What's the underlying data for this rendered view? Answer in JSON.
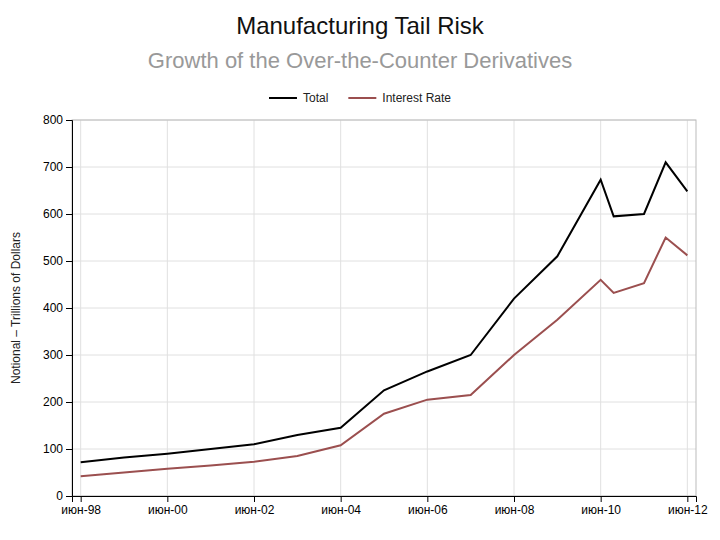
{
  "chart_data": {
    "type": "line",
    "title": "Manufacturing Tail Risk",
    "subtitle": "Growth of the Over-the-Counter Derivatives",
    "ylabel": "Notional – Trillions of Dollars",
    "x": [
      0,
      1,
      2,
      3,
      4,
      5,
      6,
      7,
      8,
      9,
      10,
      11,
      12,
      12.3,
      13,
      13.5,
      14
    ],
    "xlim": [
      -0.2,
      14.2
    ],
    "xticks": [
      {
        "value": 0,
        "label": "июн-98"
      },
      {
        "value": 2,
        "label": "июн-00"
      },
      {
        "value": 4,
        "label": "июн-02"
      },
      {
        "value": 6,
        "label": "июн-04"
      },
      {
        "value": 8,
        "label": "июн-06"
      },
      {
        "value": 10,
        "label": "июн-08"
      },
      {
        "value": 12,
        "label": "июн-10"
      },
      {
        "value": 14,
        "label": "июн-12"
      }
    ],
    "ylim": [
      0,
      800
    ],
    "yticks": [
      0,
      100,
      200,
      300,
      400,
      500,
      600,
      700,
      800
    ],
    "series": [
      {
        "name": "Total",
        "color": "#000000",
        "values": [
          72,
          82,
          90,
          100,
          110,
          130,
          145,
          225,
          265,
          300,
          420,
          510,
          673,
          595,
          600,
          710,
          648
        ]
      },
      {
        "name": "Interest Rate",
        "color": "#9B4F4F",
        "values": [
          42,
          50,
          58,
          65,
          73,
          85,
          108,
          175,
          205,
          215,
          300,
          375,
          460,
          432,
          453,
          550,
          512
        ]
      }
    ],
    "grid": true,
    "legend": "top"
  }
}
